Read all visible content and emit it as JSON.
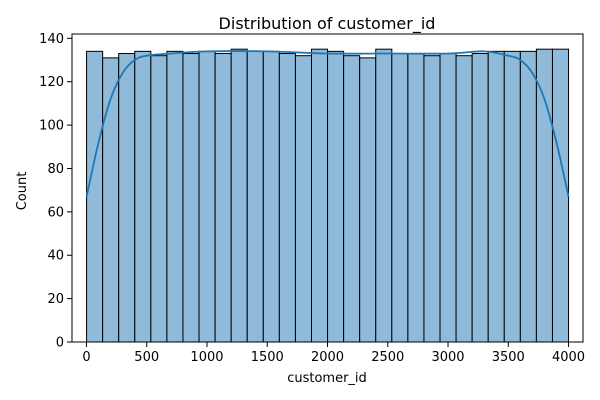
{
  "chart_data": {
    "type": "bar",
    "title": "Distribution of customer_id",
    "xlabel": "customer_id",
    "ylabel": "Count",
    "xlim": [
      -120,
      4120
    ],
    "ylim": [
      0,
      142
    ],
    "x_ticks": [
      0,
      500,
      1000,
      1500,
      2000,
      2500,
      3000,
      3500,
      4000
    ],
    "y_ticks": [
      0,
      20,
      40,
      60,
      80,
      100,
      120,
      140
    ],
    "bin_start": 1,
    "bin_width": 133.3,
    "values": [
      134,
      131,
      133,
      134,
      132,
      134,
      133,
      134,
      133,
      135,
      134,
      134,
      133,
      132,
      135,
      134,
      132,
      131,
      135,
      133,
      133,
      132,
      133,
      132,
      133,
      134,
      134,
      134,
      135,
      135
    ],
    "kde": {
      "x": [
        1,
        100,
        200,
        300,
        400,
        500,
        700,
        1000,
        1500,
        2000,
        2500,
        3000,
        3300,
        3500,
        3600,
        3700,
        3800,
        3900,
        4000
      ],
      "y": [
        67,
        92,
        112,
        124,
        130,
        132,
        133,
        134,
        134,
        133,
        133,
        133,
        134,
        132,
        130,
        124,
        112,
        92,
        67
      ]
    },
    "bar_color": "#8fbad9",
    "bar_edge_color": "#000000",
    "kde_color": "#1f77b4",
    "grid": false,
    "legend": "none"
  }
}
